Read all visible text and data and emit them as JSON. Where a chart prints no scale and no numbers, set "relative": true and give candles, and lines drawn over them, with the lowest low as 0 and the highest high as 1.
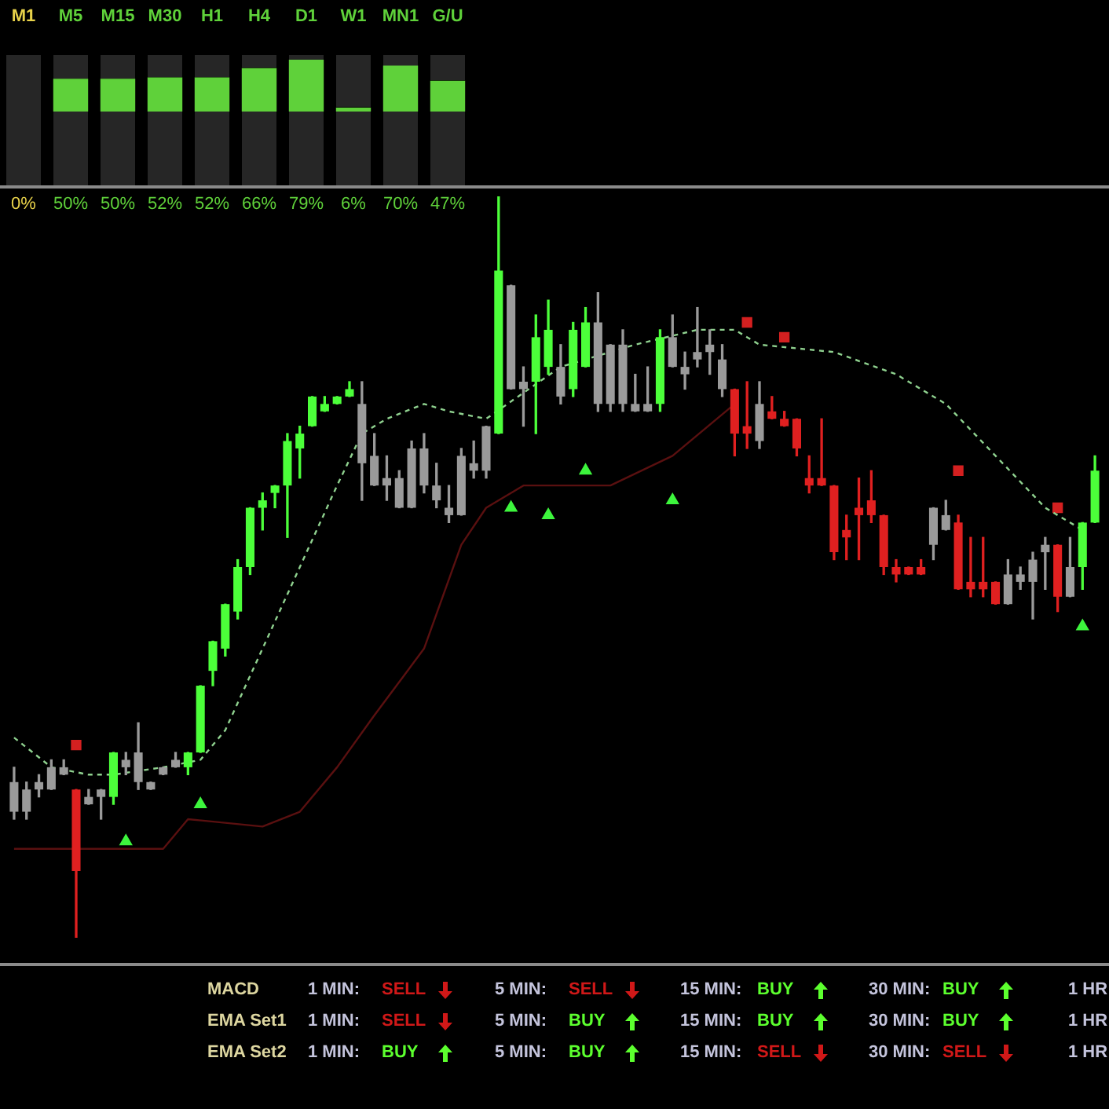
{
  "chart_data": [
    {
      "type": "bar",
      "categories": [
        "M1",
        "M5",
        "M15",
        "M30",
        "H1",
        "H4",
        "D1",
        "W1",
        "MN1",
        "G/U"
      ],
      "values": [
        0,
        50,
        50,
        52,
        52,
        66,
        79,
        6,
        70,
        47
      ],
      "value_labels": [
        "0%",
        "50%",
        "50%",
        "52%",
        "52%",
        "66%",
        "79%",
        "6%",
        "70%",
        "47%"
      ],
      "color": "#5fd13a",
      "tick_labels": "x"
    },
    {
      "type": "candlestick",
      "relative": true,
      "categories": [
        null,
        null,
        null,
        null,
        null,
        null,
        null,
        null,
        null,
        null,
        null,
        null,
        null,
        null,
        null,
        null,
        null,
        null,
        null,
        null,
        null,
        null,
        null,
        null,
        null,
        null,
        null,
        null,
        null,
        null,
        null,
        null,
        null,
        null,
        null,
        null,
        null,
        null,
        null,
        null,
        null,
        null,
        null,
        null,
        null,
        null,
        null,
        null,
        null,
        null,
        null,
        null,
        null,
        null,
        null,
        null,
        null,
        null,
        null,
        null,
        null,
        null,
        null,
        null,
        null,
        null,
        null,
        null,
        null,
        null,
        null,
        null,
        null,
        null,
        null,
        null,
        null,
        null,
        null,
        null,
        null,
        null,
        null,
        null,
        null,
        null,
        null,
        null
      ],
      "ohlc": [
        [
          0.21,
          0.23,
          0.16,
          0.17
        ],
        [
          0.2,
          0.21,
          0.16,
          0.17
        ],
        [
          0.21,
          0.22,
          0.19,
          0.2
        ],
        [
          0.23,
          0.24,
          0.2,
          0.2
        ],
        [
          0.23,
          0.24,
          0.22,
          0.22
        ],
        [
          0.2,
          0.2,
          0,
          0.09
        ],
        [
          0.19,
          0.2,
          0.18,
          0.18
        ],
        [
          0.2,
          0.2,
          0.16,
          0.19
        ],
        [
          0.19,
          0.25,
          0.18,
          0.25
        ],
        [
          0.24,
          0.25,
          0.22,
          0.23
        ],
        [
          0.25,
          0.29,
          0.2,
          0.21
        ],
        [
          0.21,
          0.21,
          0.2,
          0.2
        ],
        [
          0.23,
          0.23,
          0.22,
          0.22
        ],
        [
          0.24,
          0.25,
          0.23,
          0.23
        ],
        [
          0.23,
          0.25,
          0.22,
          0.25
        ],
        [
          0.25,
          0.34,
          0.25,
          0.34
        ],
        [
          0.36,
          0.4,
          0.34,
          0.4
        ],
        [
          0.39,
          0.45,
          0.38,
          0.45
        ],
        [
          0.44,
          0.51,
          0.43,
          0.5
        ],
        [
          0.5,
          0.58,
          0.49,
          0.58
        ],
        [
          0.58,
          0.6,
          0.55,
          0.59
        ],
        [
          0.6,
          0.61,
          0.58,
          0.61
        ],
        [
          0.61,
          0.68,
          0.54,
          0.67
        ],
        [
          0.66,
          0.69,
          0.62,
          0.68
        ],
        [
          0.69,
          0.73,
          0.69,
          0.73
        ],
        [
          0.71,
          0.73,
          0.71,
          0.72
        ],
        [
          0.72,
          0.73,
          0.72,
          0.73
        ],
        [
          0.73,
          0.75,
          0.73,
          0.74
        ],
        [
          0.72,
          0.75,
          0.59,
          0.64
        ],
        [
          0.65,
          0.68,
          0.61,
          0.61
        ],
        [
          0.62,
          0.65,
          0.59,
          0.61
        ],
        [
          0.62,
          0.63,
          0.58,
          0.58
        ],
        [
          0.66,
          0.67,
          0.58,
          0.58
        ],
        [
          0.66,
          0.68,
          0.6,
          0.61
        ],
        [
          0.61,
          0.64,
          0.58,
          0.59
        ],
        [
          0.58,
          0.61,
          0.56,
          0.57
        ],
        [
          0.65,
          0.66,
          0.57,
          0.57
        ],
        [
          0.64,
          0.67,
          0.62,
          0.63
        ],
        [
          0.69,
          0.69,
          0.62,
          0.63
        ],
        [
          0.68,
          1,
          0.68,
          0.9
        ],
        [
          0.88,
          0.88,
          0.74,
          0.74
        ],
        [
          0.75,
          0.77,
          0.69,
          0.74
        ],
        [
          0.75,
          0.84,
          0.68,
          0.81
        ],
        [
          0.77,
          0.86,
          0.76,
          0.82
        ],
        [
          0.77,
          0.8,
          0.72,
          0.73
        ],
        [
          0.74,
          0.83,
          0.73,
          0.82
        ],
        [
          0.77,
          0.85,
          0.77,
          0.83
        ],
        [
          0.83,
          0.87,
          0.71,
          0.72
        ],
        [
          0.8,
          0.8,
          0.71,
          0.72
        ],
        [
          0.8,
          0.82,
          0.71,
          0.72
        ],
        [
          0.72,
          0.76,
          0.71,
          0.71
        ],
        [
          0.72,
          0.77,
          0.71,
          0.71
        ],
        [
          0.72,
          0.82,
          0.71,
          0.81
        ],
        [
          0.81,
          0.84,
          0.77,
          0.77
        ],
        [
          0.77,
          0.79,
          0.74,
          0.76
        ],
        [
          0.79,
          0.85,
          0.77,
          0.78
        ],
        [
          0.8,
          0.82,
          0.76,
          0.79
        ],
        [
          0.78,
          0.8,
          0.73,
          0.74
        ],
        [
          0.74,
          0.74,
          0.65,
          0.68
        ],
        [
          0.69,
          0.75,
          0.66,
          0.68
        ],
        [
          0.72,
          0.75,
          0.66,
          0.67
        ],
        [
          0.71,
          0.73,
          0.7,
          0.7
        ],
        [
          0.7,
          0.71,
          0.69,
          0.69
        ],
        [
          0.7,
          0.7,
          0.65,
          0.66
        ],
        [
          0.62,
          0.65,
          0.6,
          0.61
        ],
        [
          0.62,
          0.7,
          0.61,
          0.61
        ],
        [
          0.61,
          0.61,
          0.51,
          0.52
        ],
        [
          0.55,
          0.57,
          0.51,
          0.54
        ],
        [
          0.58,
          0.62,
          0.51,
          0.57
        ],
        [
          0.59,
          0.63,
          0.56,
          0.57
        ],
        [
          0.57,
          0.57,
          0.49,
          0.5
        ],
        [
          0.5,
          0.51,
          0.48,
          0.49
        ],
        [
          0.5,
          0.5,
          0.49,
          0.49
        ],
        [
          0.5,
          0.51,
          0.49,
          0.49
        ],
        [
          0.58,
          0.58,
          0.51,
          0.53
        ],
        [
          0.57,
          0.59,
          0.55,
          0.55
        ],
        [
          0.56,
          0.57,
          0.47,
          0.47
        ],
        [
          0.48,
          0.54,
          0.46,
          0.47
        ],
        [
          0.48,
          0.54,
          0.46,
          0.47
        ],
        [
          0.48,
          0.48,
          0.45,
          0.45
        ],
        [
          0.49,
          0.51,
          0.45,
          0.45
        ],
        [
          0.49,
          0.5,
          0.47,
          0.48
        ],
        [
          0.51,
          0.52,
          0.43,
          0.48
        ],
        [
          0.53,
          0.54,
          0.47,
          0.52
        ],
        [
          0.53,
          0.53,
          0.44,
          0.46
        ],
        [
          0.5,
          0.54,
          0.46,
          0.46
        ],
        [
          0.5,
          0.56,
          0.47,
          0.56
        ],
        [
          0.56,
          0.65,
          0.56,
          0.63
        ]
      ],
      "colors": [
        "#9a9a9a",
        "#9a9a9a",
        "#9a9a9a",
        "#9a9a9a",
        "#9a9a9a",
        "#e02020",
        "#9a9a9a",
        "#9a9a9a",
        "#4cff3a",
        "#9a9a9a",
        "#9a9a9a",
        "#9a9a9a",
        "#9a9a9a",
        "#9a9a9a",
        "#4cff3a",
        "#4cff3a",
        "#4cff3a",
        "#4cff3a",
        "#4cff3a",
        "#4cff3a",
        "#4cff3a",
        "#4cff3a",
        "#4cff3a",
        "#4cff3a",
        "#4cff3a",
        "#4cff3a",
        "#4cff3a",
        "#4cff3a",
        "#9a9a9a",
        "#9a9a9a",
        "#9a9a9a",
        "#9a9a9a",
        "#9a9a9a",
        "#9a9a9a",
        "#9a9a9a",
        "#9a9a9a",
        "#9a9a9a",
        "#9a9a9a",
        "#9a9a9a",
        "#4cff3a",
        "#9a9a9a",
        "#9a9a9a",
        "#4cff3a",
        "#4cff3a",
        "#9a9a9a",
        "#4cff3a",
        "#4cff3a",
        "#9a9a9a",
        "#9a9a9a",
        "#9a9a9a",
        "#9a9a9a",
        "#9a9a9a",
        "#4cff3a",
        "#9a9a9a",
        "#9a9a9a",
        "#9a9a9a",
        "#9a9a9a",
        "#9a9a9a",
        "#e02020",
        "#e02020",
        "#9a9a9a",
        "#e02020",
        "#e02020",
        "#e02020",
        "#e02020",
        "#e02020",
        "#e02020",
        "#e02020",
        "#e02020",
        "#e02020",
        "#e02020",
        "#e02020",
        "#e02020",
        "#e02020",
        "#9a9a9a",
        "#9a9a9a",
        "#e02020",
        "#e02020",
        "#e02020",
        "#e02020",
        "#9a9a9a",
        "#9a9a9a",
        "#9a9a9a",
        "#9a9a9a",
        "#e02020",
        "#9a9a9a",
        "#4cff3a",
        "#4cff3a"
      ],
      "series": [
        {
          "type": "line",
          "color": "#8fd18f",
          "line_style": "dashed",
          "marker": "none",
          "values": [
            0.27,
            null,
            null,
            0.23,
            null,
            null,
            0.22,
            null,
            0.22,
            null,
            null,
            null,
            0.23,
            null,
            null,
            0.24,
            null,
            0.28,
            null,
            null,
            0.39,
            null,
            null,
            0.5,
            null,
            null,
            0.61,
            null,
            0.68,
            null,
            0.7,
            null,
            null,
            0.72,
            null,
            0.71,
            null,
            null,
            0.7,
            null,
            null,
            null,
            null,
            null,
            0.77,
            null,
            null,
            null,
            null,
            null,
            0.8,
            null,
            null,
            null,
            null,
            0.82,
            null,
            null,
            0.82,
            null,
            0.8,
            null,
            null,
            null,
            null,
            null,
            0.79,
            null,
            null,
            null,
            null,
            0.76,
            null,
            null,
            null,
            0.72,
            null,
            null,
            null,
            0.65,
            null,
            null,
            null,
            0.58,
            null,
            null,
            0.55,
            null
          ]
        },
        {
          "type": "line",
          "color": "#5a1010",
          "line_style": "solid",
          "marker": "none",
          "values": [
            0.12,
            null,
            null,
            null,
            null,
            null,
            null,
            null,
            null,
            null,
            null,
            null,
            0.12,
            null,
            0.16,
            null,
            null,
            null,
            null,
            null,
            0.15,
            null,
            null,
            0.17,
            null,
            null,
            0.23,
            null,
            null,
            0.3,
            null,
            null,
            null,
            0.39,
            null,
            null,
            0.53,
            null,
            0.58,
            null,
            null,
            0.61,
            null,
            0.61,
            null,
            null,
            null,
            null,
            0.61,
            null,
            null,
            null,
            null,
            0.65,
            null,
            null,
            null,
            null,
            0.72,
            null,
            null,
            null,
            null,
            null,
            null,
            null,
            null,
            null,
            null,
            null,
            null,
            null,
            null,
            null,
            null,
            null,
            null,
            null,
            null,
            null,
            null,
            null,
            null,
            null,
            null,
            null,
            null,
            null
          ]
        },
        {
          "type": "scatter",
          "color": "#3df53d",
          "marker": "triangle",
          "values": [
            null,
            null,
            null,
            null,
            null,
            null,
            null,
            null,
            null,
            0.13,
            null,
            null,
            null,
            null,
            null,
            0.18,
            null,
            null,
            null,
            null,
            null,
            null,
            null,
            null,
            null,
            null,
            null,
            null,
            null,
            null,
            null,
            null,
            null,
            null,
            null,
            null,
            null,
            null,
            null,
            null,
            0.58,
            null,
            null,
            0.57,
            null,
            null,
            0.63,
            null,
            null,
            null,
            null,
            null,
            null,
            0.59,
            null,
            null,
            null,
            null,
            null,
            null,
            null,
            null,
            null,
            null,
            null,
            null,
            null,
            null,
            null,
            null,
            null,
            null,
            null,
            null,
            null,
            null,
            null,
            null,
            null,
            null,
            null,
            null,
            null,
            null,
            null,
            null,
            0.42,
            null
          ]
        },
        {
          "type": "scatter",
          "color": "#d42020",
          "marker": "square",
          "values": [
            null,
            null,
            null,
            null,
            null,
            0.26,
            null,
            null,
            null,
            null,
            null,
            null,
            null,
            null,
            null,
            null,
            null,
            null,
            null,
            null,
            null,
            null,
            null,
            null,
            null,
            null,
            null,
            null,
            null,
            null,
            null,
            null,
            null,
            null,
            null,
            null,
            null,
            null,
            null,
            null,
            null,
            null,
            null,
            null,
            null,
            null,
            null,
            null,
            null,
            null,
            null,
            null,
            null,
            null,
            null,
            null,
            null,
            null,
            null,
            0.83,
            null,
            null,
            0.81,
            null,
            null,
            null,
            null,
            null,
            null,
            null,
            null,
            null,
            null,
            null,
            null,
            null,
            0.63,
            null,
            null,
            null,
            null,
            null,
            null,
            null,
            0.58,
            null,
            null,
            null
          ]
        }
      ]
    },
    {
      "type": "other",
      "annotations": [
        "MACD",
        "1 MIN:",
        "SELL",
        "5 MIN:",
        "SELL",
        "15 MIN:",
        "BUY",
        "30 MIN:",
        "BUY",
        "1 HR:",
        "EMA Set1",
        "1 MIN:",
        "SELL",
        "5 MIN:",
        "BUY",
        "15 MIN:",
        "BUY",
        "30 MIN:",
        "BUY",
        "1 HR:",
        "EMA Set2",
        "1 MIN:",
        "BUY",
        "5 MIN:",
        "BUY",
        "15 MIN:",
        "SELL",
        "30 MIN:",
        "SELL",
        "1 HR:"
      ]
    }
  ]
}
